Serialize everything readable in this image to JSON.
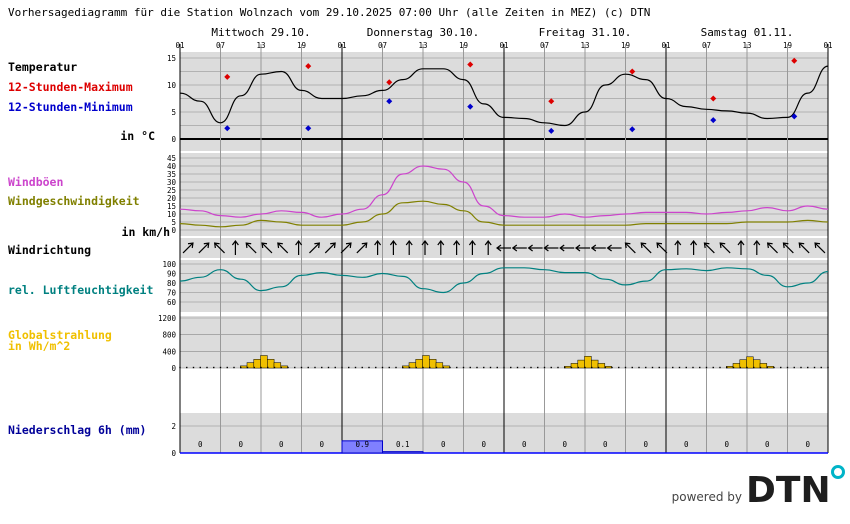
{
  "title": "Vorhersagediagramm für die Station Wolnzach vom 29.10.2025 07:00 Uhr (alle Zeiten in MEZ)   (c) DTN",
  "days": [
    "Mittwoch 29.10.",
    "Donnerstag 30.10.",
    "Freitag 31.10.",
    "Samstag 01.11."
  ],
  "hour_labels": [
    "01",
    "07",
    "13",
    "19",
    "01",
    "07",
    "13",
    "19",
    "01",
    "07",
    "13",
    "19",
    "01",
    "07",
    "13",
    "19",
    "01"
  ],
  "labels": {
    "temperature": "Temperatur",
    "tmax": "12-Stunden-Maximum",
    "tmin": "12-Stunden-Minimum",
    "temp_unit": "in °C",
    "gusts": "Windböen",
    "wind_speed": "Windgeschwindigkeit",
    "wind_unit": "in km/h",
    "wind_dir": "Windrichtung",
    "humidity": "rel. Luftfeuchtigkeit",
    "radiation_1": "Globalstrahlung",
    "radiation_2": "in Wh/m^2",
    "precip": "Niederschlag 6h (mm)"
  },
  "branding": {
    "powered": "powered by",
    "logo": "DTN"
  },
  "colors": {
    "max": "#dd0000",
    "min": "#0000cc",
    "gust": "#cc44cc",
    "wind": "#808000",
    "humidity": "#008080",
    "radiation": "#f0c000",
    "precip_label": "#000099",
    "precip_bar": "#8080ff",
    "panel": "#dcdcdc",
    "logo": "#1e1e1e",
    "logo_accent": "#00b4c8"
  },
  "chart_data": {
    "type": "line",
    "x_unit": "hours since 29.10. 01:00 MEZ",
    "temperature": {
      "ylim": [
        0,
        15
      ],
      "ticks": [
        0,
        5,
        10,
        15
      ],
      "x": [
        0,
        3,
        6,
        9,
        12,
        15,
        18,
        21,
        24,
        27,
        30,
        33,
        36,
        39,
        42,
        45,
        48,
        51,
        54,
        57,
        60,
        63,
        66,
        69,
        72,
        75,
        78,
        81,
        84,
        87,
        90,
        93,
        96
      ],
      "values": [
        8.5,
        7,
        3,
        8,
        12,
        12.5,
        9,
        7.5,
        7.5,
        8,
        9,
        11,
        13,
        13,
        11,
        6.5,
        4,
        3.8,
        3,
        2.5,
        5,
        10,
        12,
        11,
        7.5,
        6,
        5.5,
        5.2,
        4.8,
        3.8,
        4,
        8.5,
        13.5
      ],
      "max": [
        {
          "x": 7,
          "y": 11.5
        },
        {
          "x": 19,
          "y": 13.5
        },
        {
          "x": 31,
          "y": 10.5
        },
        {
          "x": 43,
          "y": 13.8
        },
        {
          "x": 55,
          "y": 7
        },
        {
          "x": 67,
          "y": 12.5
        },
        {
          "x": 79,
          "y": 7.5
        },
        {
          "x": 91,
          "y": 14.5
        }
      ],
      "min": [
        {
          "x": 7,
          "y": 2
        },
        {
          "x": 19,
          "y": 2
        },
        {
          "x": 31,
          "y": 7
        },
        {
          "x": 43,
          "y": 6
        },
        {
          "x": 55,
          "y": 1.5
        },
        {
          "x": 67,
          "y": 1.8
        },
        {
          "x": 79,
          "y": 3.5
        },
        {
          "x": 91,
          "y": 4.2
        }
      ]
    },
    "wind": {
      "ylim": [
        0,
        45
      ],
      "ticks": [
        0,
        5,
        10,
        15,
        20,
        25,
        30,
        35,
        40,
        45
      ],
      "x": [
        0,
        3,
        6,
        9,
        12,
        15,
        18,
        21,
        24,
        27,
        30,
        33,
        36,
        39,
        42,
        45,
        48,
        51,
        54,
        57,
        60,
        63,
        66,
        69,
        72,
        75,
        78,
        81,
        84,
        87,
        90,
        93,
        96
      ],
      "gusts": [
        13,
        12,
        9,
        8,
        10,
        12,
        11,
        8,
        10,
        13,
        22,
        35,
        40,
        38,
        30,
        15,
        9,
        8,
        8,
        10,
        8,
        9,
        10,
        11,
        11,
        11,
        10,
        11,
        12,
        14,
        12,
        15,
        13
      ],
      "speed": [
        4,
        3,
        2,
        3,
        6,
        5,
        3,
        3,
        3,
        5,
        10,
        17,
        18,
        16,
        12,
        5,
        3,
        3,
        3,
        3,
        3,
        3,
        3,
        4,
        4,
        4,
        4,
        4,
        5,
        5,
        5,
        6,
        5
      ]
    },
    "wind_direction_deg": [
      45,
      45,
      315,
      360,
      315,
      315,
      315,
      360,
      45,
      45,
      45,
      45,
      360,
      360,
      360,
      360,
      360,
      360,
      360,
      360,
      270,
      270,
      270,
      270,
      270,
      270,
      270,
      270,
      315,
      315,
      315,
      360,
      360,
      315,
      315,
      360,
      360,
      315,
      315,
      315,
      315
    ],
    "humidity": {
      "ylim": [
        60,
        100
      ],
      "ticks": [
        60,
        70,
        80,
        90,
        100
      ],
      "x": [
        0,
        3,
        6,
        9,
        12,
        15,
        18,
        21,
        24,
        27,
        30,
        33,
        36,
        39,
        42,
        45,
        48,
        51,
        54,
        57,
        60,
        63,
        66,
        69,
        72,
        75,
        78,
        81,
        84,
        87,
        90,
        93,
        96
      ],
      "values": [
        82,
        86,
        94,
        84,
        72,
        76,
        88,
        91,
        88,
        86,
        90,
        87,
        74,
        70,
        80,
        90,
        96,
        96,
        94,
        91,
        91,
        84,
        78,
        82,
        94,
        95,
        93,
        96,
        95,
        88,
        76,
        80,
        92
      ]
    },
    "radiation": {
      "ylim": [
        0,
        1200
      ],
      "ticks": [
        0,
        400,
        800,
        1200
      ],
      "bars": [
        {
          "day": 0,
          "values": [
            50,
            130,
            210,
            300,
            210,
            130,
            50
          ]
        },
        {
          "day": 1,
          "values": [
            50,
            130,
            210,
            300,
            210,
            130,
            50
          ]
        },
        {
          "day": 2,
          "values": [
            40,
            110,
            190,
            280,
            190,
            110,
            40
          ]
        },
        {
          "day": 3,
          "values": [
            40,
            110,
            200,
            270,
            200,
            110,
            40
          ]
        }
      ]
    },
    "precipitation": {
      "ylim": [
        0,
        2
      ],
      "ticks": [
        0,
        2
      ],
      "values": [
        "0",
        "0",
        "0",
        "0",
        "0.9",
        "0.1",
        "0",
        "0",
        "0",
        "0",
        "0",
        "0",
        "0",
        "0",
        "0",
        "0"
      ]
    }
  }
}
